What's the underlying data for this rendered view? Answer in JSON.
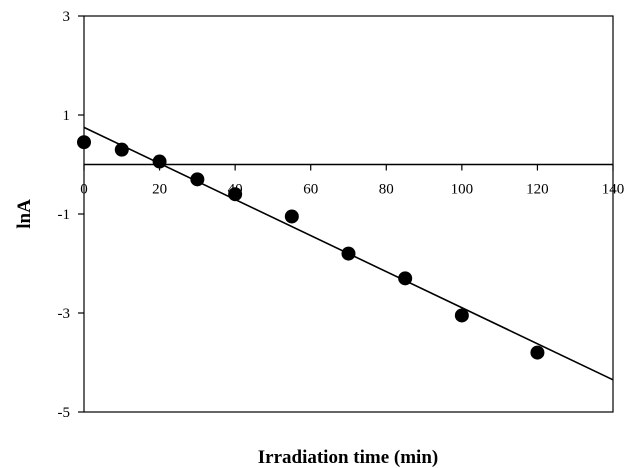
{
  "chart_data": {
    "type": "scatter",
    "title": "",
    "xlabel": "Irradiation time (min)",
    "ylabel": "lnA",
    "xlim": [
      0,
      140
    ],
    "ylim": [
      -5,
      3
    ],
    "xticks": [
      0,
      20,
      40,
      60,
      80,
      100,
      120,
      140
    ],
    "xtick_labels": [
      "0",
      "20",
      "40",
      "60",
      "80",
      "100",
      "120",
      "140"
    ],
    "yticks": [
      3,
      1,
      -1,
      -3,
      -5
    ],
    "ytick_labels": [
      "3",
      "1",
      "-1",
      "-3",
      "-5"
    ],
    "x_axis_crosses_at_y": 0,
    "grid": false,
    "legend": "none",
    "series": [
      {
        "marker": "filled-circle",
        "color": "#000000",
        "points": [
          [
            0,
            0.45
          ],
          [
            10,
            0.3
          ],
          [
            20,
            0.06
          ],
          [
            30,
            -0.3
          ],
          [
            40,
            -0.6
          ],
          [
            55,
            -1.05
          ],
          [
            70,
            -1.8
          ],
          [
            85,
            -2.3
          ],
          [
            100,
            -3.05
          ],
          [
            120,
            -3.8
          ]
        ]
      }
    ],
    "trendline": {
      "type": "linear",
      "color": "#000000",
      "x_range": [
        0,
        140
      ],
      "y_start": 0.75,
      "y_end": -4.35
    }
  }
}
